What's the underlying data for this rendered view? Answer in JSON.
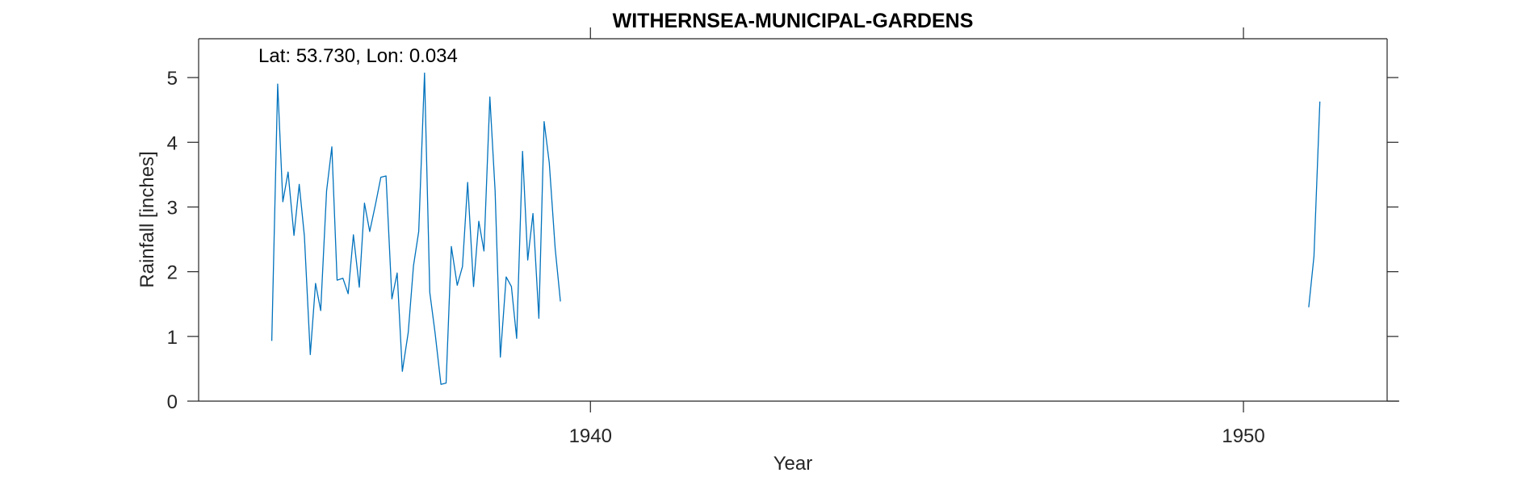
{
  "chart_data": {
    "type": "line",
    "title": "WITHERNSEA-MUNICIPAL-GARDENS",
    "annotation": "Lat: 53.730, Lon: 0.034",
    "xlabel": "Year",
    "ylabel": "Rainfall [inches]",
    "xlim": [
      1934,
      1952.2
    ],
    "ylim": [
      0,
      5.6
    ],
    "x_ticks": [
      1940,
      1950
    ],
    "y_ticks": [
      0,
      1,
      2,
      3,
      4,
      5
    ],
    "grid": false,
    "line_color": "#0072BD",
    "series": [
      {
        "segments": [
          [
            [
              1935.12,
              0.93
            ],
            [
              1935.21,
              4.9
            ],
            [
              1935.29,
              3.08
            ],
            [
              1935.37,
              3.54
            ],
            [
              1935.46,
              2.56
            ],
            [
              1935.54,
              3.35
            ],
            [
              1935.62,
              2.55
            ],
            [
              1935.71,
              0.72
            ],
            [
              1935.79,
              1.82
            ],
            [
              1935.87,
              1.4
            ],
            [
              1935.96,
              3.25
            ],
            [
              1936.04,
              3.93
            ],
            [
              1936.12,
              1.87
            ],
            [
              1936.21,
              1.9
            ],
            [
              1936.29,
              1.66
            ],
            [
              1936.37,
              2.57
            ],
            [
              1936.46,
              1.76
            ],
            [
              1936.54,
              3.06
            ],
            [
              1936.62,
              2.62
            ],
            [
              1936.71,
              3.05
            ],
            [
              1936.79,
              3.46
            ],
            [
              1936.87,
              3.48
            ],
            [
              1936.96,
              1.58
            ],
            [
              1937.04,
              1.98
            ],
            [
              1937.12,
              0.46
            ],
            [
              1937.21,
              1.06
            ],
            [
              1937.29,
              2.09
            ],
            [
              1937.37,
              2.62
            ],
            [
              1937.46,
              5.07
            ],
            [
              1937.54,
              1.68
            ],
            [
              1937.62,
              1.06
            ],
            [
              1937.71,
              0.26
            ],
            [
              1937.79,
              0.28
            ],
            [
              1937.87,
              2.39
            ],
            [
              1937.96,
              1.79
            ],
            [
              1938.04,
              2.08
            ],
            [
              1938.12,
              3.38
            ],
            [
              1938.21,
              1.77
            ],
            [
              1938.29,
              2.78
            ],
            [
              1938.37,
              2.32
            ],
            [
              1938.46,
              4.7
            ],
            [
              1938.54,
              3.25
            ],
            [
              1938.62,
              0.68
            ],
            [
              1938.71,
              1.92
            ],
            [
              1938.79,
              1.77
            ],
            [
              1938.87,
              0.97
            ],
            [
              1938.96,
              3.86
            ],
            [
              1939.04,
              2.18
            ],
            [
              1939.12,
              2.9
            ],
            [
              1939.21,
              1.28
            ],
            [
              1939.29,
              4.32
            ],
            [
              1939.37,
              3.68
            ],
            [
              1939.46,
              2.36
            ],
            [
              1939.54,
              1.54
            ]
          ],
          [
            [
              1951.0,
              1.45
            ],
            [
              1951.08,
              2.24
            ],
            [
              1951.17,
              4.63
            ]
          ]
        ]
      }
    ]
  }
}
